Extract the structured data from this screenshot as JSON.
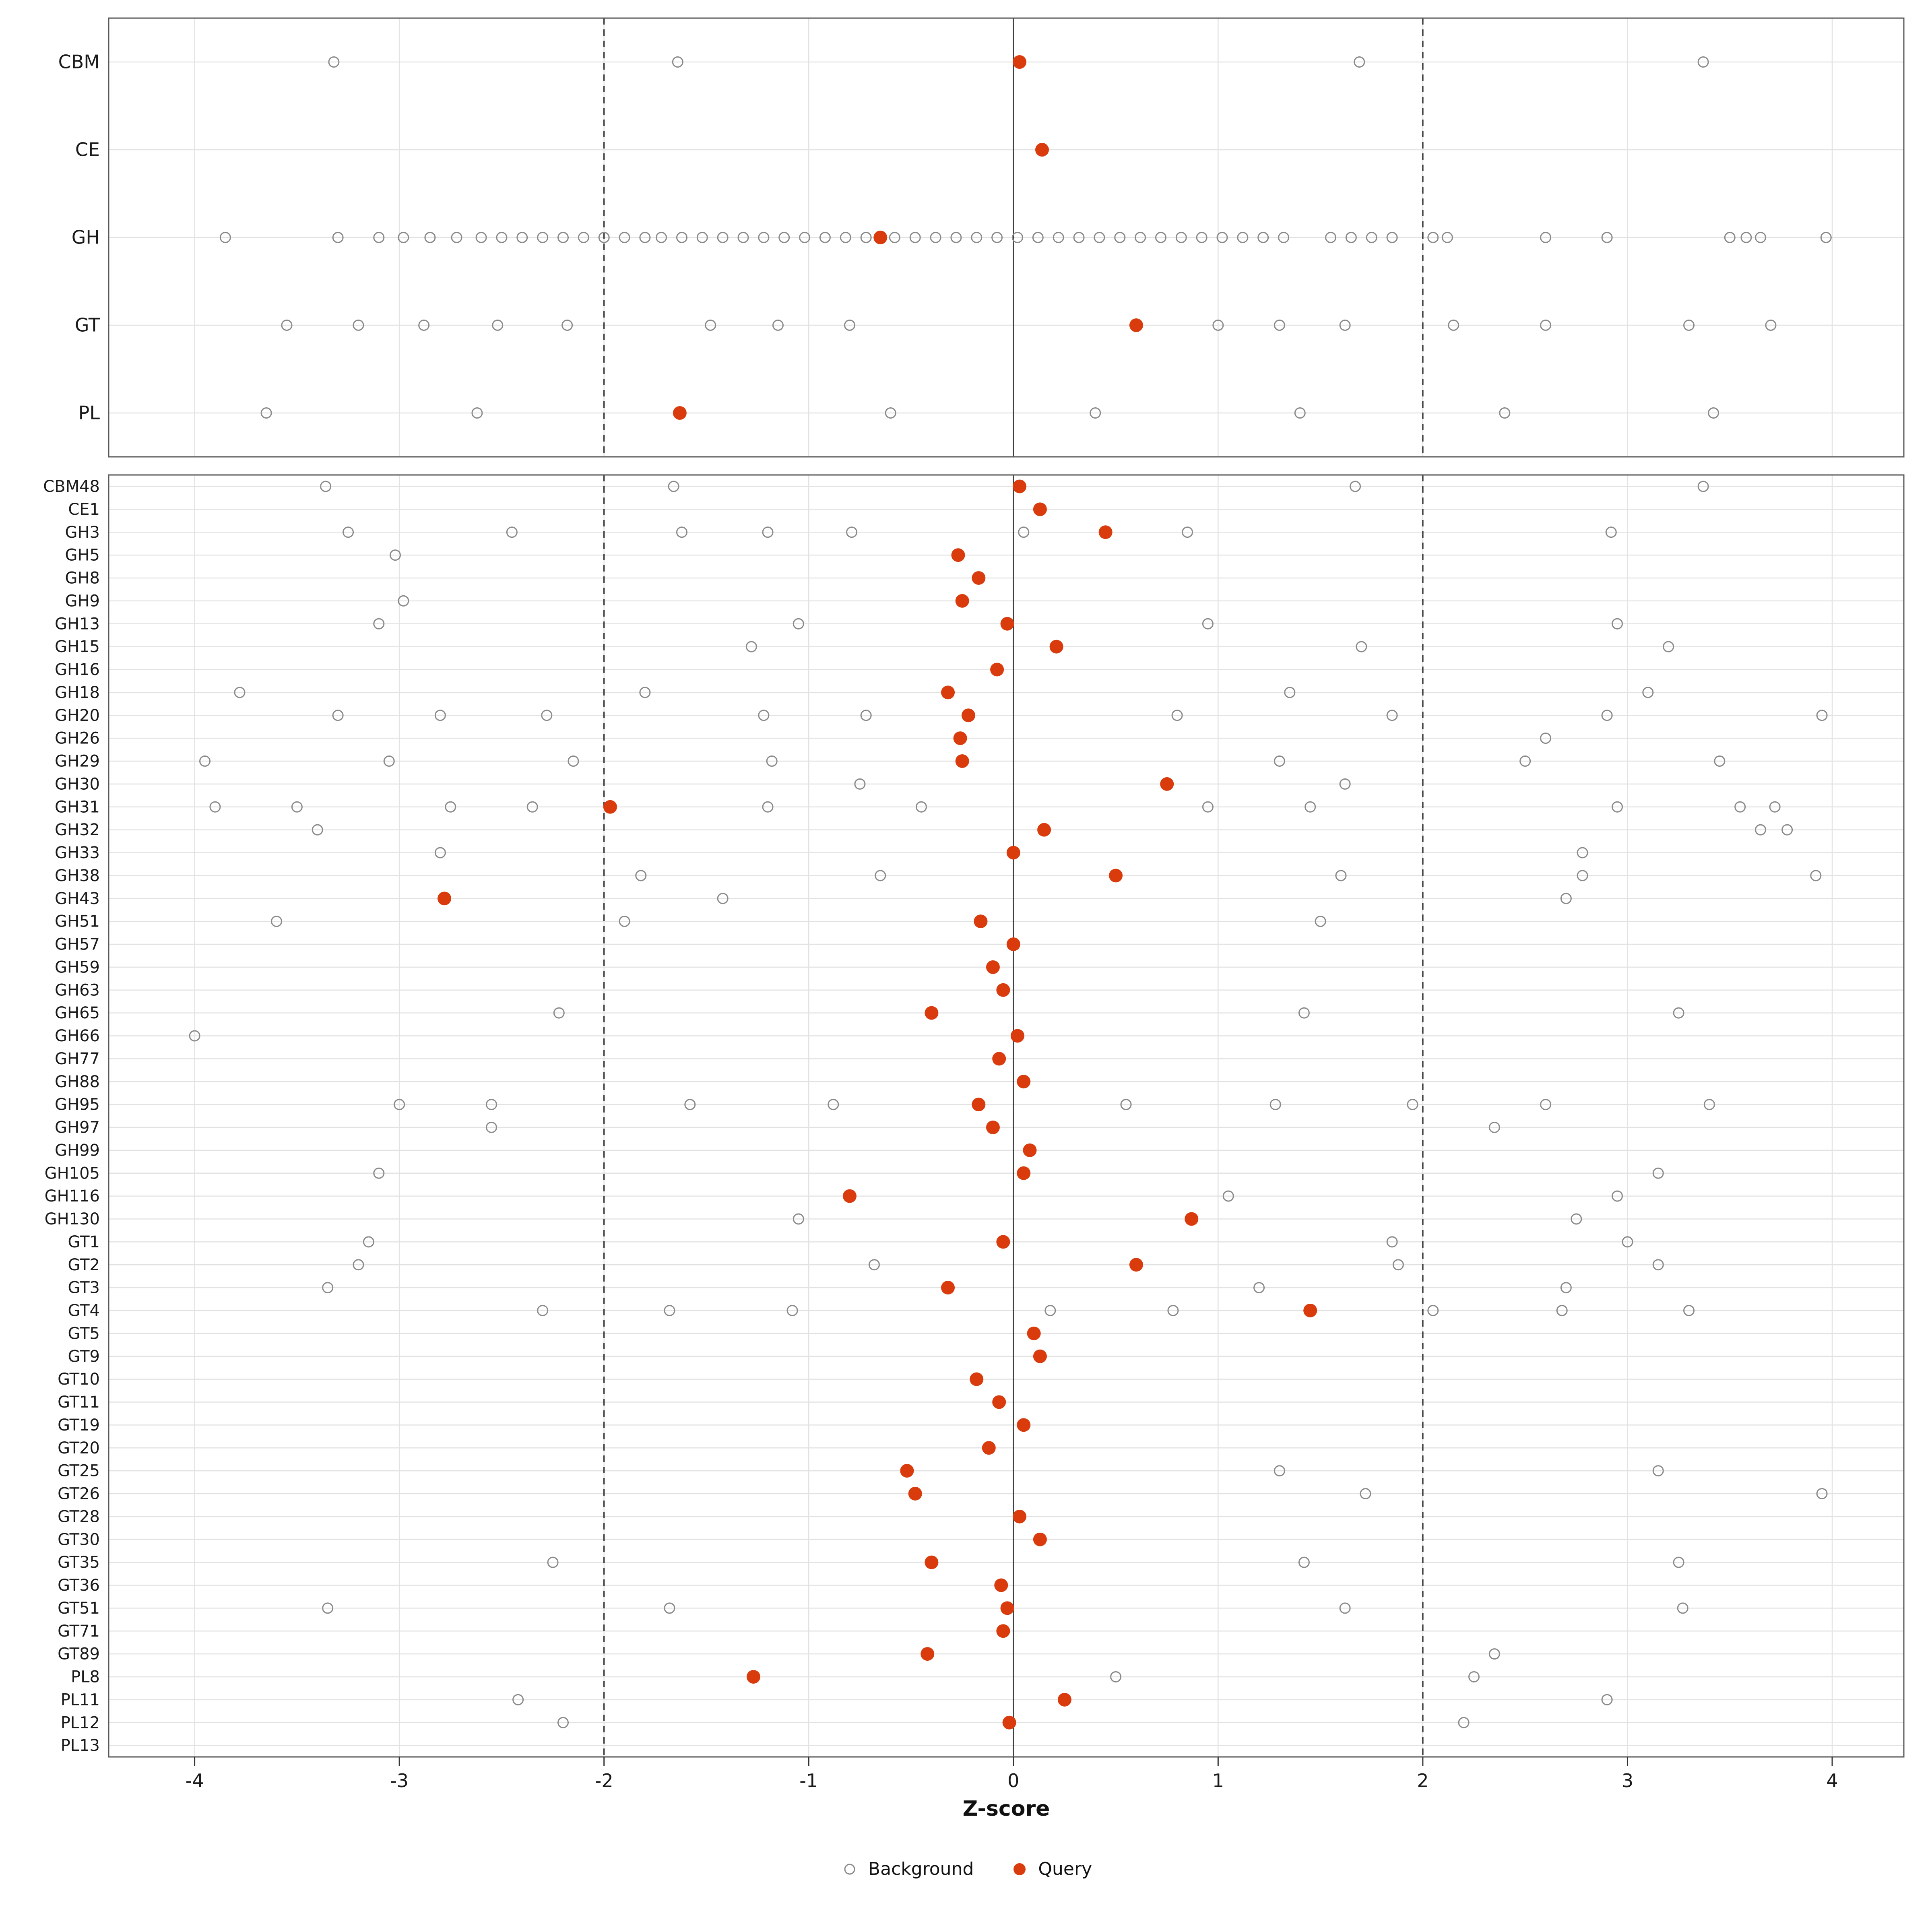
{
  "figure": {
    "xlabel": "Z-score",
    "colors": {
      "query": "#d93b0d",
      "background_stroke": "#8a8a8a",
      "grid": "#e2e2e2",
      "panel_border": "#595959",
      "ref_line": "#404040",
      "text": "#1a1a1a"
    }
  },
  "chart_data": {
    "type": "scatter",
    "title": "",
    "xlabel": "Z-score",
    "ylabel": "",
    "x_range": [
      -4.42,
      4.35
    ],
    "x_ticks": [
      -4,
      -3,
      -2,
      -1,
      0,
      1,
      2,
      3,
      4
    ],
    "ref_lines": {
      "solid_at": 0,
      "dashed_at": [
        -2,
        2
      ]
    },
    "legend": [
      {
        "name": "Background",
        "style": "open-circle"
      },
      {
        "name": "Query",
        "style": "filled-circle"
      }
    ],
    "panels": [
      {
        "id": "family-panel",
        "rows": [
          {
            "label": "CBM",
            "query": 0.03,
            "background": [
              -3.32,
              -1.64,
              1.69,
              3.37
            ]
          },
          {
            "label": "CE",
            "query": 0.14,
            "background": []
          },
          {
            "label": "GH",
            "query": -0.65,
            "background": [
              -3.85,
              -3.3,
              -3.1,
              -2.98,
              -2.85,
              -2.72,
              -2.6,
              -2.5,
              -2.4,
              -2.3,
              -2.2,
              -2.1,
              -2.0,
              -1.9,
              -1.8,
              -1.72,
              -1.62,
              -1.52,
              -1.42,
              -1.32,
              -1.22,
              -1.12,
              -1.02,
              -0.92,
              -0.82,
              -0.72,
              -0.58,
              -0.48,
              -0.38,
              -0.28,
              -0.18,
              -0.08,
              0.02,
              0.12,
              0.22,
              0.32,
              0.42,
              0.52,
              0.62,
              0.72,
              0.82,
              0.92,
              1.02,
              1.12,
              1.22,
              1.32,
              1.55,
              1.65,
              1.75,
              1.85,
              2.05,
              2.12,
              2.6,
              2.9,
              3.5,
              3.58,
              3.65,
              3.97
            ]
          },
          {
            "label": "GT",
            "query": 0.6,
            "background": [
              -3.55,
              -3.2,
              -2.88,
              -2.52,
              -2.18,
              -1.48,
              -1.15,
              -0.8,
              1.0,
              1.3,
              1.62,
              2.15,
              2.6,
              3.3,
              3.7
            ]
          },
          {
            "label": "PL",
            "query": -1.63,
            "background": [
              -3.65,
              -2.62,
              -0.6,
              0.4,
              1.4,
              2.4,
              3.42
            ]
          }
        ]
      },
      {
        "id": "subfamily-panel",
        "rows": [
          {
            "label": "CBM48",
            "query": 0.03,
            "background": [
              -3.36,
              -1.66,
              1.67,
              3.37
            ]
          },
          {
            "label": "CE1",
            "query": 0.13,
            "background": []
          },
          {
            "label": "GH3",
            "query": 0.45,
            "background": [
              -3.25,
              -2.45,
              -1.62,
              -1.2,
              -0.79,
              0.05,
              0.85,
              2.92
            ]
          },
          {
            "label": "GH5",
            "query": -0.27,
            "background": [
              -3.02
            ]
          },
          {
            "label": "GH8",
            "query": -0.17,
            "background": []
          },
          {
            "label": "GH9",
            "query": -0.25,
            "background": [
              -2.98
            ]
          },
          {
            "label": "GH13",
            "query": -0.03,
            "background": [
              -3.1,
              -1.05,
              0.95,
              2.95
            ]
          },
          {
            "label": "GH15",
            "query": 0.21,
            "background": [
              -1.28,
              1.7,
              3.2
            ]
          },
          {
            "label": "GH16",
            "query": -0.08,
            "background": []
          },
          {
            "label": "GH18",
            "query": -0.32,
            "background": [
              -3.78,
              -1.8,
              1.35,
              3.1
            ]
          },
          {
            "label": "GH20",
            "query": -0.22,
            "background": [
              -3.3,
              -2.8,
              -2.28,
              -1.22,
              -0.72,
              0.8,
              1.85,
              2.9,
              3.95
            ]
          },
          {
            "label": "GH26",
            "query": -0.26,
            "background": [
              2.6
            ]
          },
          {
            "label": "GH29",
            "query": -0.25,
            "background": [
              -3.95,
              -3.05,
              -2.15,
              -1.18,
              1.3,
              2.5,
              3.45
            ]
          },
          {
            "label": "GH30",
            "query": 0.75,
            "background": [
              -0.75,
              1.62
            ]
          },
          {
            "label": "GH31",
            "query": -1.97,
            "background": [
              -3.9,
              -3.5,
              -2.75,
              -2.35,
              -1.2,
              -0.45,
              0.95,
              1.45,
              2.95,
              3.55,
              3.72
            ]
          },
          {
            "label": "GH32",
            "query": 0.15,
            "background": [
              -3.4,
              3.65,
              3.78
            ]
          },
          {
            "label": "GH33",
            "query": 0.0,
            "background": [
              -2.8,
              2.78
            ]
          },
          {
            "label": "GH38",
            "query": 0.5,
            "background": [
              -1.82,
              -0.65,
              1.6,
              2.78,
              3.92
            ]
          },
          {
            "label": "GH43",
            "query": -2.78,
            "background": [
              -1.42,
              2.7
            ]
          },
          {
            "label": "GH51",
            "query": -0.16,
            "background": [
              -3.6,
              -1.9,
              1.5
            ]
          },
          {
            "label": "GH57",
            "query": 0.0,
            "background": []
          },
          {
            "label": "GH59",
            "query": -0.1,
            "background": []
          },
          {
            "label": "GH63",
            "query": -0.05,
            "background": []
          },
          {
            "label": "GH65",
            "query": -0.4,
            "background": [
              -2.22,
              1.42,
              3.25
            ]
          },
          {
            "label": "GH66",
            "query": 0.02,
            "background": [
              -4.0
            ]
          },
          {
            "label": "GH77",
            "query": -0.07,
            "background": []
          },
          {
            "label": "GH88",
            "query": 0.05,
            "background": []
          },
          {
            "label": "GH95",
            "query": -0.17,
            "background": [
              -3.0,
              -2.55,
              -1.58,
              -0.88,
              0.55,
              1.28,
              1.95,
              2.6,
              3.4
            ]
          },
          {
            "label": "GH97",
            "query": -0.1,
            "background": [
              -2.55,
              2.35
            ]
          },
          {
            "label": "GH99",
            "query": 0.08,
            "background": []
          },
          {
            "label": "GH105",
            "query": 0.05,
            "background": [
              -3.1,
              3.15
            ]
          },
          {
            "label": "GH116",
            "query": -0.8,
            "background": [
              1.05,
              2.95
            ]
          },
          {
            "label": "GH130",
            "query": 0.87,
            "background": [
              -1.05,
              2.75
            ]
          },
          {
            "label": "GT1",
            "query": -0.05,
            "background": [
              -3.15,
              1.85,
              3.0
            ]
          },
          {
            "label": "GT2",
            "query": 0.6,
            "background": [
              -3.2,
              -0.68,
              1.88,
              3.15
            ]
          },
          {
            "label": "GT3",
            "query": -0.32,
            "background": [
              -3.35,
              1.2,
              2.7
            ]
          },
          {
            "label": "GT4",
            "query": 1.45,
            "background": [
              -2.3,
              -1.68,
              -1.08,
              0.18,
              0.78,
              2.05,
              2.68,
              3.3
            ]
          },
          {
            "label": "GT5",
            "query": 0.1,
            "background": []
          },
          {
            "label": "GT9",
            "query": 0.13,
            "background": []
          },
          {
            "label": "GT10",
            "query": -0.18,
            "background": []
          },
          {
            "label": "GT11",
            "query": -0.07,
            "background": []
          },
          {
            "label": "GT19",
            "query": 0.05,
            "background": []
          },
          {
            "label": "GT20",
            "query": -0.12,
            "background": []
          },
          {
            "label": "GT25",
            "query": -0.52,
            "background": [
              1.3,
              3.15
            ]
          },
          {
            "label": "GT26",
            "query": -0.48,
            "background": [
              1.72,
              3.95
            ]
          },
          {
            "label": "GT28",
            "query": 0.03,
            "background": []
          },
          {
            "label": "GT30",
            "query": 0.13,
            "background": []
          },
          {
            "label": "GT35",
            "query": -0.4,
            "background": [
              -2.25,
              1.42,
              3.25
            ]
          },
          {
            "label": "GT36",
            "query": -0.06,
            "background": []
          },
          {
            "label": "GT51",
            "query": -0.03,
            "background": [
              -3.35,
              -1.68,
              1.62,
              3.27
            ]
          },
          {
            "label": "GT71",
            "query": -0.05,
            "background": []
          },
          {
            "label": "GT89",
            "query": -0.42,
            "background": [
              2.35
            ]
          },
          {
            "label": "PL8",
            "query": -1.27,
            "background": [
              0.5,
              2.25
            ]
          },
          {
            "label": "PL11",
            "query": 0.25,
            "background": [
              -2.42,
              2.9
            ]
          },
          {
            "label": "PL12",
            "query": -0.02,
            "background": [
              -2.2,
              2.2
            ]
          },
          {
            "label": "PL13",
            "query": null,
            "background": []
          }
        ]
      }
    ]
  }
}
